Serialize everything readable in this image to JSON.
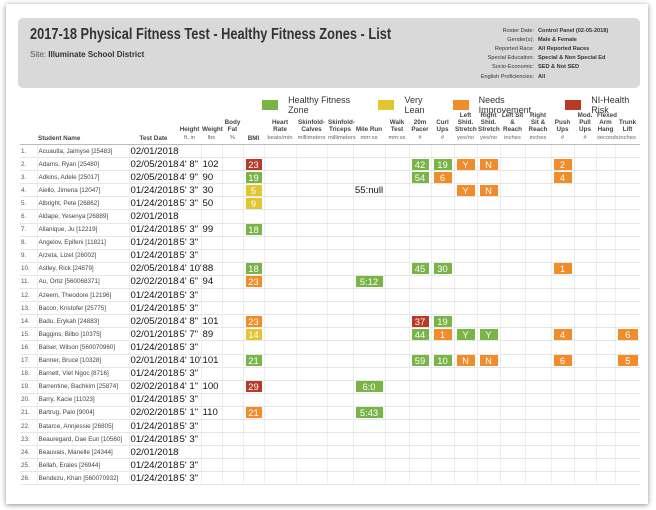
{
  "header": {
    "title": "2017-18 Physical Fitness Test - Healthy Fitness Zones - List",
    "site_label": "Site:",
    "site": "Illuminate School District",
    "filters": [
      {
        "label": "Roster Date:",
        "value": "Control Panel (02-05-2018)"
      },
      {
        "label": "Gender(s):",
        "value": "Male & Female"
      },
      {
        "label": "Reported Race:",
        "value": "All Reported Races"
      },
      {
        "label": "Special Education:",
        "value": "Special & Non Special Ed"
      },
      {
        "label": "Socio-Economic:",
        "value": "SED & Not SED"
      },
      {
        "label": "English Proficiencies:",
        "value": "All"
      }
    ]
  },
  "legend": [
    {
      "label": "Healthy Fitness Zone",
      "color": "#79b546"
    },
    {
      "label": "Very Lean",
      "color": "#e3c530"
    },
    {
      "label": "Needs Improvement",
      "color": "#f08c2a"
    },
    {
      "label": "NI-Health Risk",
      "color": "#b73a2a"
    }
  ],
  "table": {
    "columns": [
      {
        "key": "name",
        "label": "Student Name"
      },
      {
        "key": "date",
        "label": "Test Date"
      },
      {
        "key": "height",
        "label": "Height",
        "unit": "ft, in"
      },
      {
        "key": "weight",
        "label": "Weight",
        "unit": "lbs"
      },
      {
        "key": "body_fat",
        "label": "Body Fat",
        "unit": "%"
      },
      {
        "key": "bmi",
        "label": "BMI"
      },
      {
        "key": "heart_rate",
        "label": "Heart Rate",
        "unit": "beats/min"
      },
      {
        "key": "skinfold_calves",
        "label": "Skinfold-Calves",
        "unit": "millimeters"
      },
      {
        "key": "skinfold_triceps",
        "label": "Skinfold-Triceps",
        "unit": "millimeters"
      },
      {
        "key": "mile_run",
        "label": "Mile Run",
        "unit": "mm:ss"
      },
      {
        "key": "walk_test",
        "label": "Walk Test",
        "unit": "mm:ss"
      },
      {
        "key": "pacer",
        "label": "20m Pacer",
        "unit": "#"
      },
      {
        "key": "curl_ups",
        "label": "Curl Ups",
        "unit": "#"
      },
      {
        "key": "left_shoulder",
        "label": "Left Shld. Stretch",
        "unit": "yes/no"
      },
      {
        "key": "right_shoulder",
        "label": "Right Shld. Stretch",
        "unit": "yes/no"
      },
      {
        "key": "left_sit_reach",
        "label": "Left Sit & Reach",
        "unit": "inches"
      },
      {
        "key": "right_sit_reach",
        "label": "Right Sit & Reach",
        "unit": "inches"
      },
      {
        "key": "push_ups",
        "label": "Push Ups",
        "unit": "#"
      },
      {
        "key": "mod_pull_ups",
        "label": "Mod. Pull Ups",
        "unit": "#"
      },
      {
        "key": "flexed_arm_hang",
        "label": "Flexed Arm Hang",
        "unit": "seconds"
      },
      {
        "key": "trunk_lift",
        "label": "Trunk Lift",
        "unit": "inches"
      }
    ],
    "rows": [
      {
        "num": "1.",
        "name": "Acuautla, Jaimyse [25483]",
        "date": "02/01/2018"
      },
      {
        "num": "2.",
        "name": "Adams, Ryan [25480]",
        "date": "02/05/2018",
        "height": "4' 8\"",
        "weight": 102,
        "bmi": {
          "value": 23,
          "color": "#b73a2a"
        },
        "pacer": {
          "value": 42,
          "color": "#79b546"
        },
        "curl_ups": {
          "value": 19,
          "color": "#79b546"
        },
        "left_shoulder": {
          "value": "Y",
          "color": "#f08c2a"
        },
        "right_shoulder": {
          "value": "N",
          "color": "#f08c2a"
        },
        "push_ups": {
          "value": 2,
          "color": "#f08c2a"
        }
      },
      {
        "num": "3.",
        "name": "Adkins, Adele [25017]",
        "date": "02/05/2018",
        "height": "4' 9\"",
        "weight": 90,
        "bmi": {
          "value": 19,
          "color": "#79b546"
        },
        "pacer": {
          "value": 54,
          "color": "#79b546"
        },
        "curl_ups": {
          "value": 6,
          "color": "#f08c2a"
        },
        "push_ups": {
          "value": 4,
          "color": "#f08c2a"
        }
      },
      {
        "num": "4.",
        "name": "Aiello, Jimena [12047]",
        "date": "01/24/2018",
        "height": "5' 3\"",
        "weight": 30,
        "bmi": {
          "value": 5,
          "color": "#e3c530"
        },
        "mile_run": "55:null",
        "left_shoulder": {
          "value": "Y",
          "color": "#f08c2a"
        },
        "right_shoulder": {
          "value": "N",
          "color": "#f08c2a"
        }
      },
      {
        "num": "5.",
        "name": "Albright, Pete [26862]",
        "date": "01/24/2018",
        "height": "5' 3\"",
        "weight": 50,
        "bmi": {
          "value": 9,
          "color": "#e3c530"
        }
      },
      {
        "num": "6.",
        "name": "Aldape, Yesenya [26889]",
        "date": "02/01/2018"
      },
      {
        "num": "7.",
        "name": "Allanique, Ju [12219]",
        "date": "01/24/2018",
        "height": "5' 3\"",
        "weight": 99,
        "bmi": {
          "value": 18,
          "color": "#79b546"
        }
      },
      {
        "num": "8.",
        "name": "Angelov, Epifeni [11821]",
        "date": "01/24/2018",
        "height": "5' 3\""
      },
      {
        "num": "9.",
        "name": "Arzeta, Lizet [26002]",
        "date": "01/24/2018",
        "height": "5' 3\""
      },
      {
        "num": "10.",
        "name": "Astley, Rick [24879]",
        "date": "02/05/2018",
        "height": "4' 10\"",
        "weight": 88,
        "bmi": {
          "value": 18,
          "color": "#79b546"
        },
        "pacer": {
          "value": 45,
          "color": "#79b546"
        },
        "curl_ups": {
          "value": 30,
          "color": "#79b546"
        },
        "push_ups": {
          "value": 1,
          "color": "#f08c2a"
        }
      },
      {
        "num": "11.",
        "name": "Au, Ortiz [560068371]",
        "date": "02/02/2018",
        "height": "4' 6\"",
        "weight": 94,
        "bmi": {
          "value": 23,
          "color": "#f08c2a"
        },
        "mile_run": {
          "value": "5:12",
          "color": "#79b546"
        }
      },
      {
        "num": "12.",
        "name": "Azeem, Theodore [12196]",
        "date": "01/24/2018",
        "height": "5' 3\""
      },
      {
        "num": "13.",
        "name": "Bacon, Kristofer [25775]",
        "date": "01/24/2018",
        "height": "5' 3\""
      },
      {
        "num": "14.",
        "name": "Badu, Erykah [24883]",
        "date": "02/05/2018",
        "height": "4' 8\"",
        "weight": 101,
        "bmi": {
          "value": 23,
          "color": "#f08c2a"
        },
        "pacer": {
          "value": 37,
          "color": "#b73a2a"
        },
        "curl_ups": {
          "value": 19,
          "color": "#79b546"
        }
      },
      {
        "num": "15.",
        "name": "Baggins, Bilbo [10375]",
        "date": "02/01/2018",
        "height": "5' 7\"",
        "weight": 89,
        "bmi": {
          "value": 14,
          "color": "#e3c530"
        },
        "pacer": {
          "value": 44,
          "color": "#79b546"
        },
        "curl_ups": {
          "value": 1,
          "color": "#f08c2a"
        },
        "left_shoulder": {
          "value": "Y",
          "color": "#79b546"
        },
        "right_shoulder": {
          "value": "Y",
          "color": "#79b546"
        },
        "push_ups": {
          "value": 4,
          "color": "#f08c2a"
        },
        "trunk_lift": {
          "value": 6,
          "color": "#f08c2a"
        }
      },
      {
        "num": "16.",
        "name": "Balser, Wilson [560070960]",
        "date": "01/24/2018",
        "height": "5' 3\""
      },
      {
        "num": "17.",
        "name": "Banner, Bruce [10328]",
        "date": "02/01/2018",
        "height": "4' 10\"",
        "weight": 101,
        "bmi": {
          "value": 21,
          "color": "#79b546"
        },
        "pacer": {
          "value": 59,
          "color": "#79b546"
        },
        "curl_ups": {
          "value": 10,
          "color": "#79b546"
        },
        "left_shoulder": {
          "value": "N",
          "color": "#f08c2a"
        },
        "right_shoulder": {
          "value": "N",
          "color": "#f08c2a"
        },
        "push_ups": {
          "value": 6,
          "color": "#f08c2a"
        },
        "trunk_lift": {
          "value": 5,
          "color": "#f08c2a"
        }
      },
      {
        "num": "18.",
        "name": "Barnett, Viet Ngoc [8716]",
        "date": "01/24/2018",
        "height": "5' 3\""
      },
      {
        "num": "19.",
        "name": "Barrentine, Bachkim [25874]",
        "date": "02/02/2018",
        "height": "4' 1\"",
        "weight": 100,
        "bmi": {
          "value": 29,
          "color": "#b73a2a"
        },
        "mile_run": {
          "value": "6:0",
          "color": "#79b546"
        }
      },
      {
        "num": "20.",
        "name": "Barry, Kacie [11023]",
        "date": "01/24/2018",
        "height": "5' 3\""
      },
      {
        "num": "21.",
        "name": "Bartrug, Palo [9004]",
        "date": "02/02/2018",
        "height": "5' 1\"",
        "weight": 110,
        "bmi": {
          "value": 21,
          "color": "#f08c2a"
        },
        "mile_run": {
          "value": "5:43",
          "color": "#79b546"
        }
      },
      {
        "num": "22.",
        "name": "Batarce, Annjessie [26805]",
        "date": "01/24/2018",
        "height": "5' 3\""
      },
      {
        "num": "23.",
        "name": "Beauregard, Dae Eun [10560]",
        "date": "01/24/2018",
        "height": "5' 3\""
      },
      {
        "num": "24.",
        "name": "Beauvais, Manelle [24344]",
        "date": "02/01/2018"
      },
      {
        "num": "25.",
        "name": "Bellah, Erales [26944]",
        "date": "01/24/2018",
        "height": "5' 3\""
      },
      {
        "num": "26.",
        "name": "Bendezu, Khan [560070932]",
        "date": "01/24/2018",
        "height": "5' 3\""
      }
    ]
  }
}
